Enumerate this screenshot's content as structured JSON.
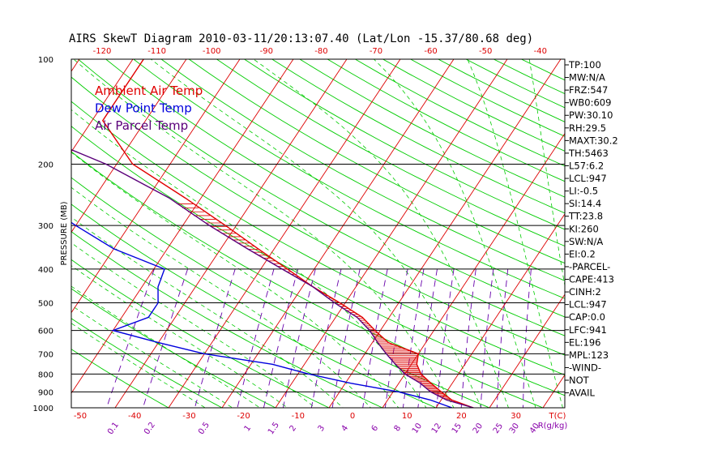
{
  "chart_data": {
    "type": "line",
    "title": "AIRS SkewT Diagram 2010-03-11/20:13:07.40 (Lat/Lon -15.37/80.68 deg)",
    "ylabel": "PRESSURE (MB)",
    "xlabel": "T(C)",
    "mixing_ratio_unit": "R(g/kg)",
    "pressure_ticks": [
      100,
      200,
      300,
      400,
      500,
      600,
      700,
      800,
      900,
      1000
    ],
    "top_temperature_ticks": [
      -120,
      -110,
      -100,
      -90,
      -80,
      -70,
      -60,
      -50,
      -40
    ],
    "bottom_temperature_ticks": [
      -50,
      -40,
      -30,
      -20,
      -10,
      0,
      10,
      20,
      30
    ],
    "mixing_ratio_labels": [
      "0.1",
      "0.2",
      "0.5",
      "1",
      "1.5",
      "2",
      "3",
      "4",
      "6",
      "8",
      "10",
      "12",
      "15",
      "20",
      "25",
      "30",
      "40"
    ],
    "legend": [
      {
        "name": "Ambient Air Temp",
        "color": "#e00000"
      },
      {
        "name": "Dew Point Temp",
        "color": "#0000dd"
      },
      {
        "name": "Air Parcel Temp",
        "color": "#5a007a"
      }
    ],
    "series": [
      {
        "name": "Ambient Air Temp",
        "color": "#e00000",
        "points": [
          [
            100,
            -78
          ],
          [
            150,
            -78
          ],
          [
            200,
            -67
          ],
          [
            250,
            -53
          ],
          [
            300,
            -42
          ],
          [
            350,
            -33
          ],
          [
            400,
            -25
          ],
          [
            450,
            -18
          ],
          [
            500,
            -11
          ],
          [
            550,
            -5
          ],
          [
            600,
            -1
          ],
          [
            650,
            3
          ],
          [
            700,
            10
          ],
          [
            750,
            11
          ],
          [
            800,
            13
          ],
          [
            850,
            16
          ],
          [
            900,
            19
          ],
          [
            950,
            22
          ],
          [
            1000,
            27
          ]
        ]
      },
      {
        "name": "Dew Point Temp",
        "color": "#0000dd",
        "points": [
          [
            100,
            -106
          ],
          [
            150,
            -98
          ],
          [
            200,
            -91
          ],
          [
            250,
            -81
          ],
          [
            300,
            -70
          ],
          [
            350,
            -60
          ],
          [
            400,
            -48
          ],
          [
            450,
            -47
          ],
          [
            500,
            -45
          ],
          [
            550,
            -45
          ],
          [
            600,
            -50
          ],
          [
            650,
            -40
          ],
          [
            700,
            -30
          ],
          [
            750,
            -16
          ],
          [
            800,
            -8
          ],
          [
            850,
            1
          ],
          [
            900,
            11
          ],
          [
            950,
            18
          ],
          [
            1000,
            23
          ]
        ]
      },
      {
        "name": "Air Parcel Temp",
        "color": "#5a007a",
        "points": [
          [
            100,
            -128
          ],
          [
            150,
            -97
          ],
          [
            200,
            -72
          ],
          [
            250,
            -56
          ],
          [
            300,
            -45
          ],
          [
            350,
            -35
          ],
          [
            400,
            -26
          ],
          [
            450,
            -18
          ],
          [
            500,
            -12
          ],
          [
            550,
            -6
          ],
          [
            600,
            -2
          ],
          [
            650,
            1
          ],
          [
            700,
            4
          ],
          [
            750,
            7
          ],
          [
            800,
            10
          ],
          [
            850,
            14
          ],
          [
            900,
            17
          ],
          [
            950,
            21
          ],
          [
            1000,
            27
          ]
        ]
      }
    ]
  },
  "indices": [
    "TP:100",
    "MW:N/A",
    "FRZ:547",
    "WB0:609",
    "PW:30.10",
    "RH:29.5",
    "MAXT:30.2",
    "TH:5463",
    "L57:6.2",
    "LCL:947",
    "LI:-0.5",
    "SI:14.4",
    "TT:23.8",
    "KI:260",
    "SW:N/A",
    "EI:0.2",
    "-PARCEL-",
    "CAPE:413",
    "CINH:2",
    "LCL:947",
    "CAP:0.0",
    "LFC:941",
    "EL:196",
    "MPL:123",
    "-WIND-",
    "NOT",
    "AVAIL"
  ],
  "colors": {
    "dry_adiabat": "#00cc00",
    "moist_adiabat": "#00cc00",
    "isotherm": "#dd0000",
    "mixing_ratio": "#6600aa",
    "isobar": "#000000",
    "temp_label": "#dd0000",
    "mixing_label": "#8800aa",
    "cape_hatch": "#dd0000"
  }
}
